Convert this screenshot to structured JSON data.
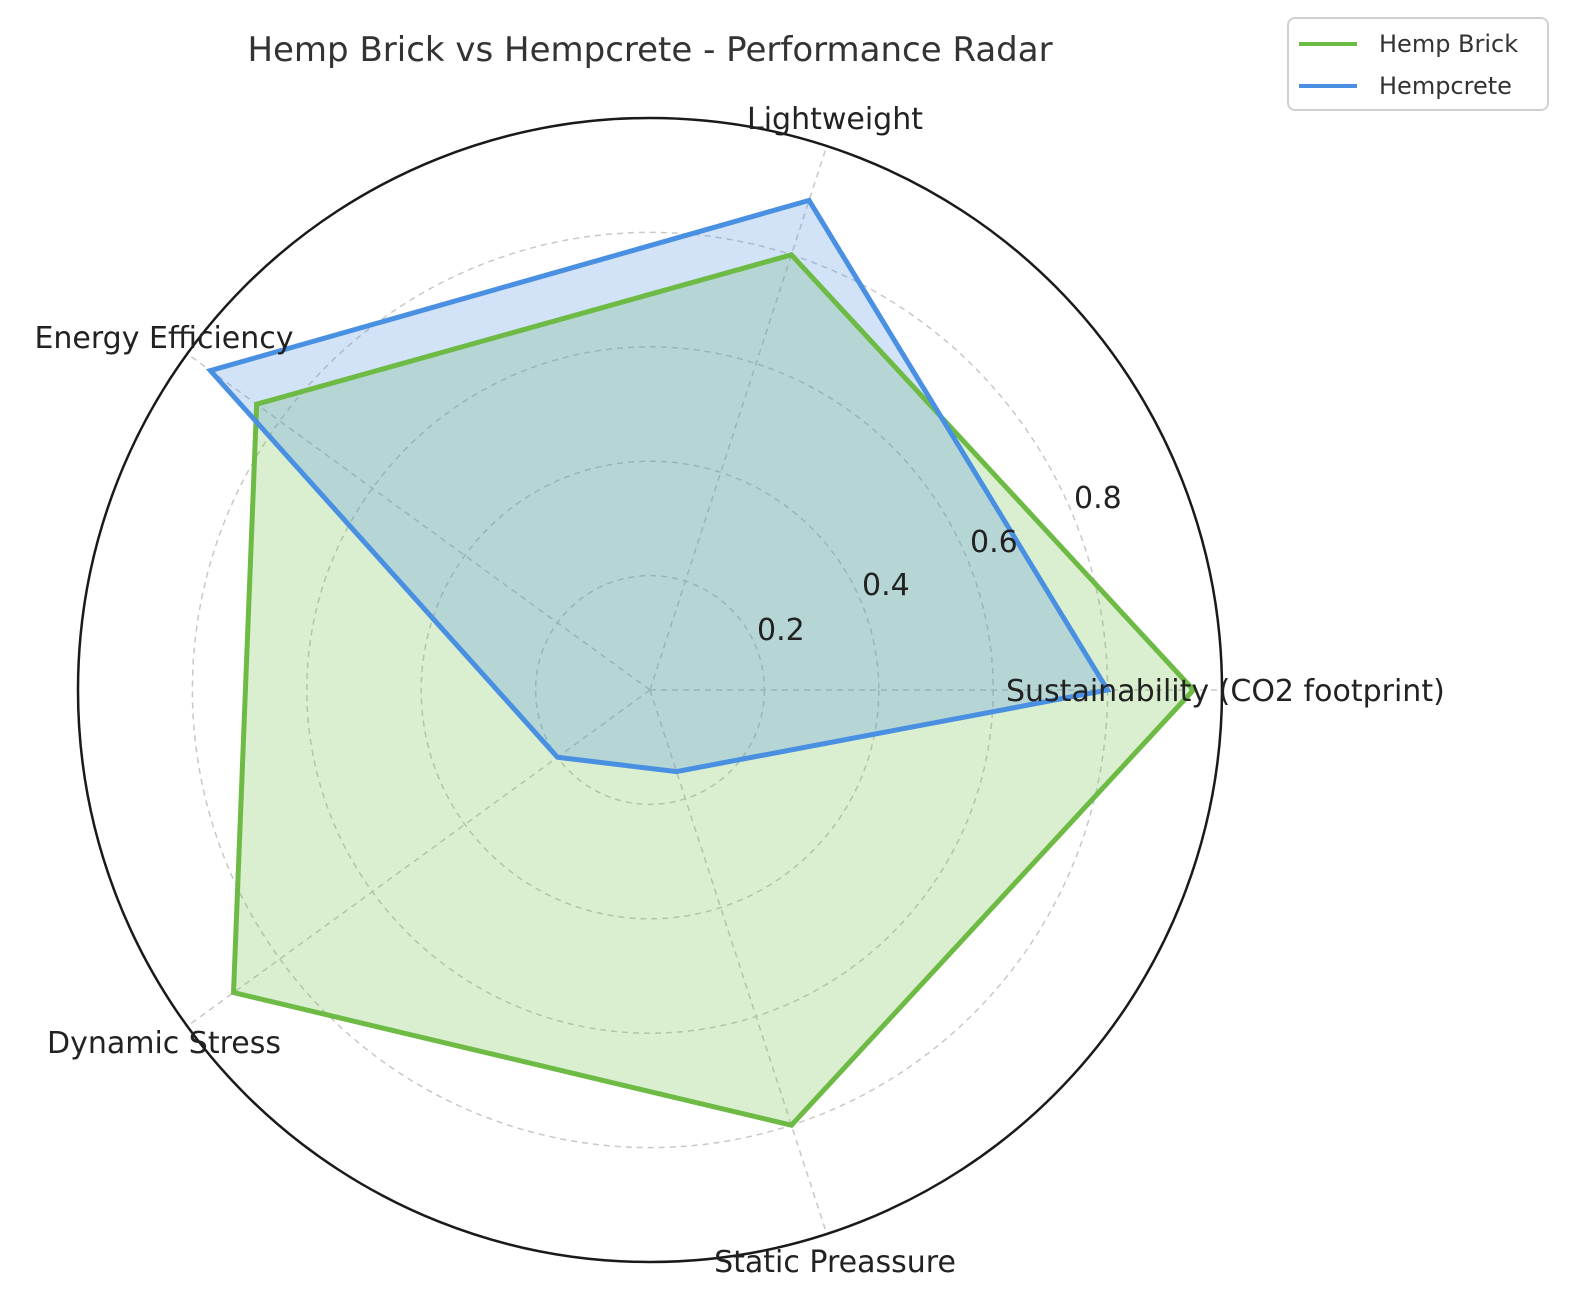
{
  "chart_data": {
    "type": "radar",
    "title": "Hemp Brick vs Hempcrete - Performance Radar",
    "categories": [
      "Sustainability (CO2 footprint)",
      "Lightweight",
      "Energy Efficiency",
      "Dynamic Stress",
      "Static Preassure"
    ],
    "series": [
      {
        "name": "Hemp Brick",
        "values": [
          0.95,
          0.8,
          0.85,
          0.9,
          0.8
        ],
        "color": "#6dbb45",
        "fill": "rgba(109,187,69,0.25)"
      },
      {
        "name": "Hempcrete",
        "values": [
          0.8,
          0.9,
          0.95,
          0.2,
          0.15
        ],
        "color": "#4a90e2",
        "fill": "rgba(74,144,226,0.25)"
      }
    ],
    "rlim": [
      0,
      1
    ],
    "rticks": [
      0.2,
      0.4,
      0.6,
      0.8
    ],
    "grid": true,
    "legend_position": "top-right"
  }
}
